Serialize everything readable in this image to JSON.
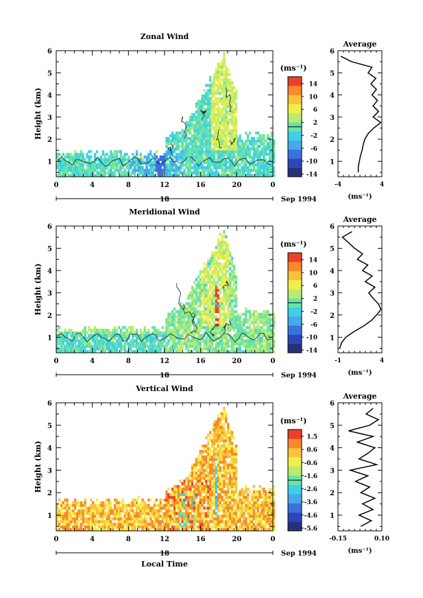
{
  "chart_data": [
    {
      "type": "heatmap",
      "title": "Zonal Wind",
      "ylabel": "Height (km)",
      "xlabel": "",
      "x_ticks": [
        "0",
        "4",
        "8",
        "12",
        "16",
        "20",
        "0"
      ],
      "y_ticks": [
        "1",
        "2",
        "3",
        "4",
        "5",
        "6"
      ],
      "xlim": [
        0,
        24
      ],
      "ylim": [
        0.3,
        6
      ],
      "date_mid": "18",
      "date_label": "Sep 1994",
      "colorbar_unit": "(ms⁻¹)",
      "colorbar_ticks": [
        "14",
        "10",
        "6",
        "2",
        "-2",
        "-6",
        "-10",
        "-14"
      ],
      "profile": {
        "title": "Average",
        "xlabel": "(ms⁻¹)",
        "x_ticks": [
          "-4",
          "4"
        ],
        "y_ticks": [
          "1",
          "2",
          "3",
          "4",
          "5",
          "6"
        ],
        "xlim": [
          -4,
          4
        ],
        "heights": [
          0.5,
          0.75,
          1.0,
          1.25,
          1.5,
          1.75,
          2.0,
          2.25,
          2.5,
          2.75,
          3.0,
          3.25,
          3.5,
          3.75,
          4.0,
          4.25,
          4.5,
          4.75,
          5.0,
          5.25,
          5.5,
          5.75
        ],
        "values": [
          -0.3,
          -0.3,
          -0.1,
          0.1,
          0.4,
          0.6,
          0.9,
          1.5,
          2.5,
          3.8,
          2.4,
          3.4,
          2.4,
          3.2,
          2.2,
          3.0,
          2.0,
          2.9,
          1.5,
          2.2,
          -1.5,
          -3.5
        ]
      }
    },
    {
      "type": "heatmap",
      "title": "Meridional Wind",
      "ylabel": "Height (km)",
      "xlabel": "",
      "x_ticks": [
        "0",
        "4",
        "8",
        "12",
        "16",
        "20",
        "0"
      ],
      "y_ticks": [
        "1",
        "2",
        "3",
        "4",
        "5",
        "6"
      ],
      "xlim": [
        0,
        24
      ],
      "ylim": [
        0.3,
        6
      ],
      "date_mid": "18",
      "date_label": "Sep 1994",
      "colorbar_unit": "(ms⁻¹)",
      "colorbar_ticks": [
        "14",
        "10",
        "6",
        "2",
        "-2",
        "-6",
        "-10",
        "-14"
      ],
      "profile": {
        "title": "Average",
        "xlabel": "(ms⁻¹)",
        "x_ticks": [
          "-1",
          "4"
        ],
        "y_ticks": [
          "1",
          "2",
          "3",
          "4",
          "5",
          "6"
        ],
        "xlim": [
          -1,
          4
        ],
        "heights": [
          0.5,
          0.75,
          1.0,
          1.25,
          1.5,
          1.75,
          2.0,
          2.25,
          2.5,
          2.75,
          3.0,
          3.25,
          3.5,
          3.75,
          4.0,
          4.25,
          4.5,
          4.75,
          5.0,
          5.25,
          5.5,
          5.75
        ],
        "values": [
          -0.8,
          -0.6,
          -0.1,
          0.8,
          1.9,
          2.8,
          3.4,
          3.9,
          3.6,
          3.0,
          2.5,
          3.2,
          2.1,
          2.9,
          1.8,
          2.4,
          1.2,
          1.8,
          0.9,
          0.2,
          -0.5,
          0.6
        ]
      }
    },
    {
      "type": "heatmap",
      "title": "Vertical Wind",
      "ylabel": "Height (km)",
      "xlabel": "Local Time",
      "x_ticks": [
        "0",
        "4",
        "8",
        "12",
        "16",
        "20",
        "0"
      ],
      "y_ticks": [
        "1",
        "2",
        "3",
        "4",
        "5",
        "6"
      ],
      "xlim": [
        0,
        24
      ],
      "ylim": [
        0.3,
        6
      ],
      "date_mid": "18",
      "date_label": "Sep 1994",
      "colorbar_unit": "(ms⁻¹)",
      "colorbar_ticks": [
        "1.5",
        "0.6",
        "-0.6",
        "-1.6",
        "-2.6",
        "-3.6",
        "-4.6",
        "-5.6"
      ],
      "profile": {
        "title": "Average",
        "xlabel": "(ms⁻¹)",
        "x_ticks": [
          "-0.15",
          "0.10"
        ],
        "y_ticks": [
          "1",
          "2",
          "3",
          "4",
          "5",
          "6"
        ],
        "xlim": [
          -0.15,
          0.1
        ],
        "heights": [
          0.5,
          0.75,
          1.0,
          1.25,
          1.5,
          1.75,
          2.0,
          2.25,
          2.5,
          2.75,
          3.0,
          3.25,
          3.5,
          3.75,
          4.0,
          4.25,
          4.5,
          4.75,
          5.0,
          5.25,
          5.5,
          5.75
        ],
        "values": [
          -0.02,
          0.04,
          -0.03,
          0.05,
          -0.01,
          0.06,
          -0.02,
          0.03,
          -0.05,
          0.02,
          -0.08,
          0.07,
          -0.03,
          0.02,
          0.06,
          -0.04,
          0.05,
          -0.09,
          0.03,
          0.08,
          0.01,
          0.05
        ]
      }
    }
  ],
  "colors": {
    "colormap": [
      "#2a2f7c",
      "#2c47b8",
      "#3a72dc",
      "#47a8ec",
      "#3fd0e6",
      "#6ae3a8",
      "#b8ec6e",
      "#f2ee4e",
      "#fbc23c",
      "#f78a2c",
      "#e9422a"
    ]
  }
}
